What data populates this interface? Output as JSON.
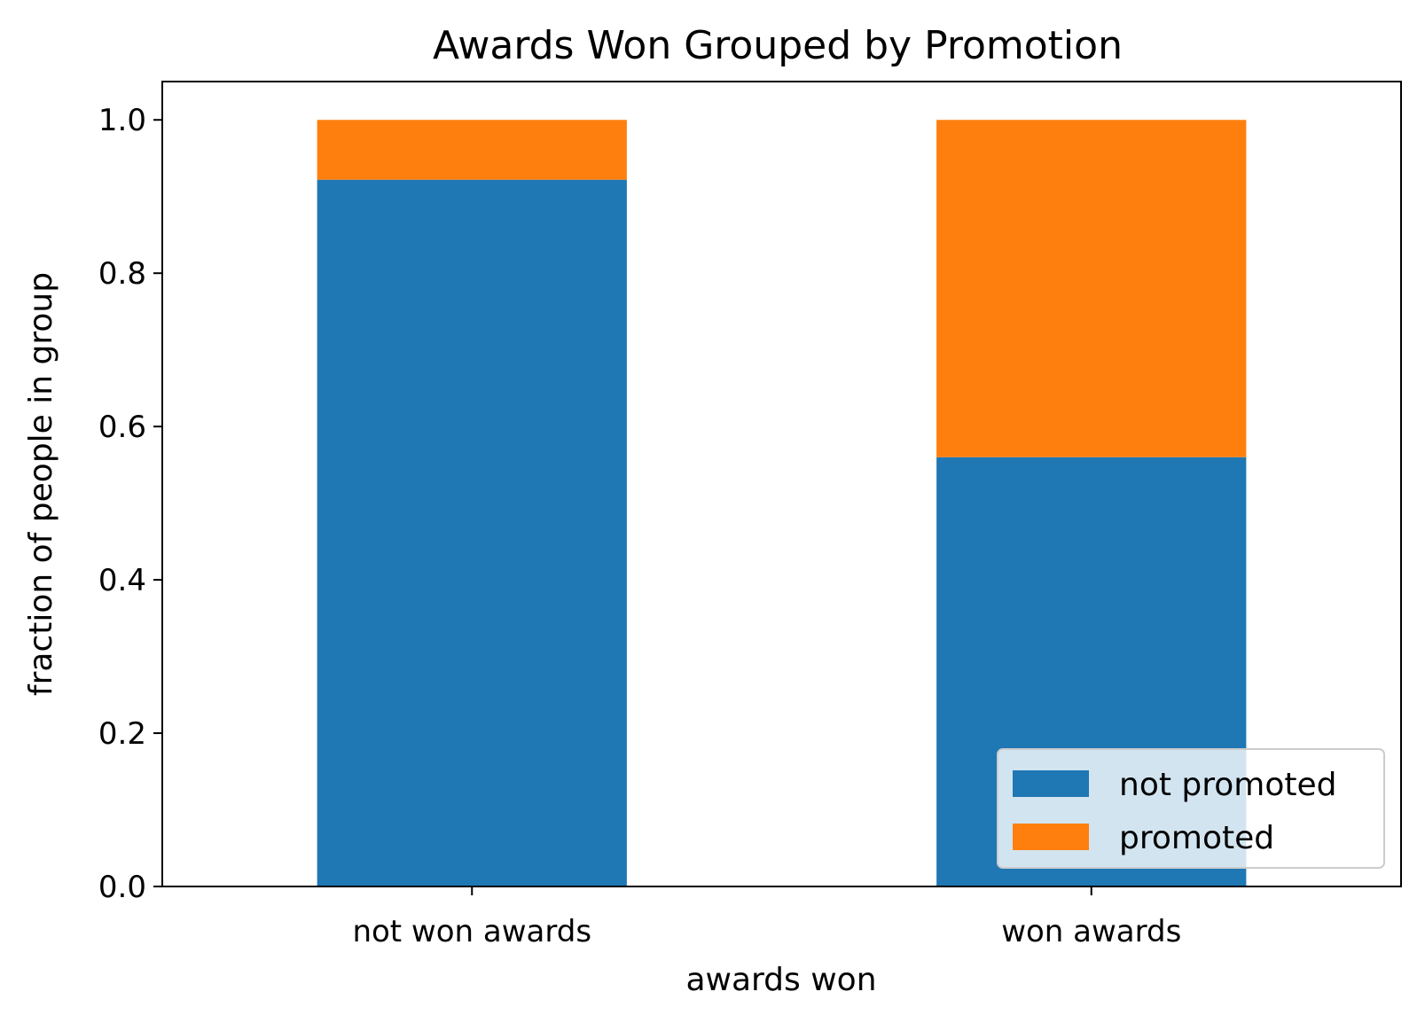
{
  "chart_data": {
    "type": "bar",
    "stacked": true,
    "title": "Awards Won Grouped by Promotion",
    "xlabel": "awards won",
    "ylabel": "fraction of people in group",
    "categories": [
      "not won awards",
      "won awards"
    ],
    "series": [
      {
        "name": "not promoted",
        "color": "#1f77b4",
        "values": [
          0.922,
          0.56
        ]
      },
      {
        "name": "promoted",
        "color": "#ff7f0e",
        "values": [
          0.078,
          0.44
        ]
      }
    ],
    "ylim": [
      0,
      1.05
    ],
    "yticks": [
      "0.0",
      "0.2",
      "0.4",
      "0.6",
      "0.8",
      "1.0"
    ],
    "grid": false,
    "legend_position": "lower right"
  }
}
